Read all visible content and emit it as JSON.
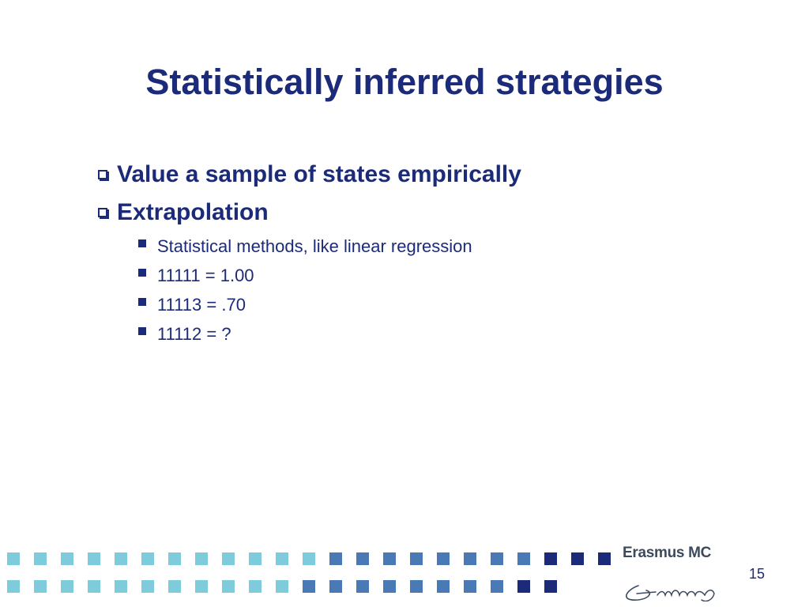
{
  "slide": {
    "title": "Statistically inferred strategies",
    "bullets": [
      {
        "text": "Value a sample of states empirically"
      },
      {
        "text": "Extrapolation"
      }
    ],
    "sub_bullets": [
      {
        "text": "Statistical methods, like linear regression"
      },
      {
        "text": "11111 = 1.00"
      },
      {
        "text": "11113 = .70"
      },
      {
        "text": "11112 = ?"
      }
    ],
    "page_number": "15"
  },
  "branding": {
    "logo_text": "Erasmus MC",
    "signature": "Erasmus"
  },
  "colors": {
    "title": "#1c2a7a",
    "dot_light": "#7ecbdc",
    "dot_mid": "#4a7ab5",
    "dot_dark": "#1c2a7a"
  }
}
